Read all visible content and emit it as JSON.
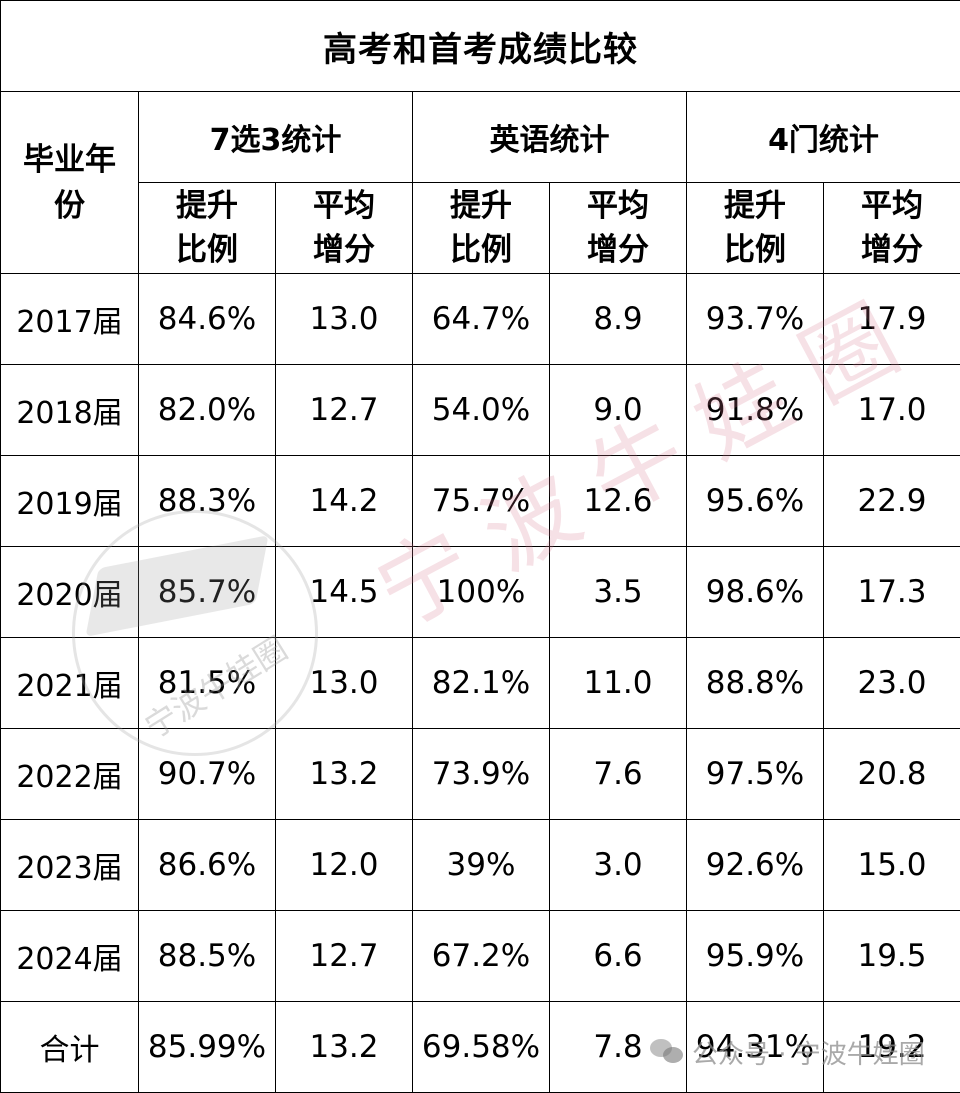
{
  "chart_data": {
    "type": "table",
    "title": "高考和首考成绩比较",
    "row_header": "毕业年份",
    "groups": [
      "7选3统计",
      "英语统计",
      "4门统计"
    ],
    "subheaders": [
      "提升比例",
      "平均增分"
    ],
    "rows": [
      {
        "label": "2017届",
        "values": [
          "84.6%",
          "13.0",
          "64.7%",
          "8.9",
          "93.7%",
          "17.9"
        ]
      },
      {
        "label": "2018届",
        "values": [
          "82.0%",
          "12.7",
          "54.0%",
          "9.0",
          "91.8%",
          "17.0"
        ]
      },
      {
        "label": "2019届",
        "values": [
          "88.3%",
          "14.2",
          "75.7%",
          "12.6",
          "95.6%",
          "22.9"
        ]
      },
      {
        "label": "2020届",
        "values": [
          "85.7%",
          "14.5",
          "100%",
          "3.5",
          "98.6%",
          "17.3"
        ]
      },
      {
        "label": "2021届",
        "values": [
          "81.5%",
          "13.0",
          "82.1%",
          "11.0",
          "88.8%",
          "23.0"
        ]
      },
      {
        "label": "2022届",
        "values": [
          "90.7%",
          "13.2",
          "73.9%",
          "7.6",
          "97.5%",
          "20.8"
        ]
      },
      {
        "label": "2023届",
        "values": [
          "86.6%",
          "12.0",
          "39%",
          "3.0",
          "92.6%",
          "15.0"
        ]
      },
      {
        "label": "2024届",
        "values": [
          "88.5%",
          "12.7",
          "67.2%",
          "6.6",
          "95.9%",
          "19.5"
        ]
      },
      {
        "label": "合计",
        "values": [
          "85.99%",
          "13.2",
          "69.58%",
          "7.8",
          "94.31%",
          "19.2"
        ]
      }
    ]
  },
  "watermark": {
    "big_text": "宁波牛娃圈",
    "seal_text": "宁波牛娃圈",
    "footer_text": "公众号 · 宁波牛娃圈",
    "footer_icon": "wechat-icon",
    "big_color": "#d7788c"
  }
}
